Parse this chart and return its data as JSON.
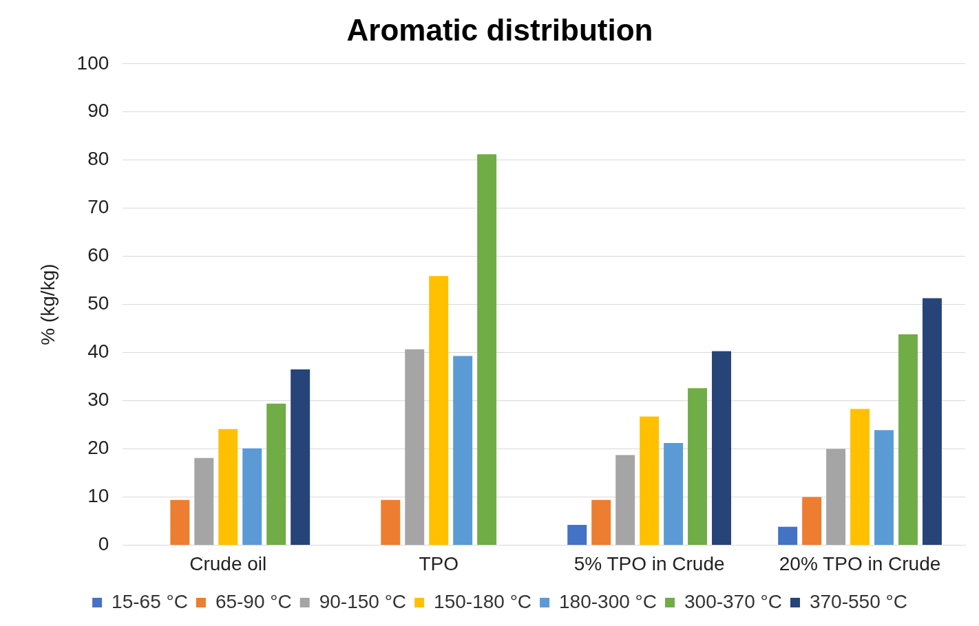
{
  "chart_data": {
    "type": "bar",
    "title": "Aromatic distribution",
    "ylabel": "% (kg/kg)",
    "categories": [
      "Crude oil",
      "TPO",
      "5% TPO in Crude",
      "20% TPO in Crude"
    ],
    "series": [
      {
        "name": "15-65 °C",
        "color": "#4472c4",
        "values": [
          0,
          0,
          4.2,
          3.8
        ]
      },
      {
        "name": "65-90 °C",
        "color": "#ed7d31",
        "values": [
          9.4,
          9.4,
          9.4,
          10
        ]
      },
      {
        "name": "90-150 °C",
        "color": "#a5a5a5",
        "values": [
          18.1,
          40.7,
          18.7,
          20
        ]
      },
      {
        "name": "150-180 °C",
        "color": "#ffc000",
        "values": [
          24.1,
          55.9,
          26.7,
          28.3
        ]
      },
      {
        "name": "180-300 °C",
        "color": "#5b9bd5",
        "values": [
          20.1,
          39.3,
          21.2,
          23.9
        ]
      },
      {
        "name": "300-370 °C",
        "color": "#70ad47",
        "values": [
          29.4,
          81.2,
          32.6,
          43.8
        ]
      },
      {
        "name": "370-550 °C",
        "color": "#264478",
        "values": [
          36.5,
          0,
          40.3,
          51.3
        ]
      }
    ],
    "ylim": [
      0,
      100
    ],
    "yticks": [
      0,
      10,
      20,
      30,
      40,
      50,
      60,
      70,
      80,
      90,
      100
    ],
    "grid": "y",
    "legend": "bottom"
  }
}
